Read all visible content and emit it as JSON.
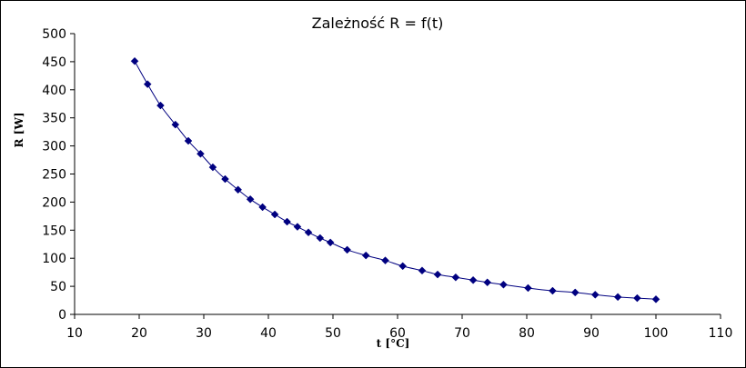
{
  "chart_data": {
    "type": "scatter",
    "title": "Zależność R = f(t)",
    "xlabel": "t [°C]",
    "ylabel": "R [W]",
    "xlim": [
      10,
      110
    ],
    "ylim": [
      0,
      500
    ],
    "x_ticks": [
      10,
      20,
      30,
      40,
      50,
      60,
      70,
      80,
      90,
      100,
      110
    ],
    "y_ticks": [
      0,
      50,
      100,
      150,
      200,
      250,
      300,
      350,
      400,
      450,
      500
    ],
    "grid": false,
    "legend": "none",
    "colors": {
      "series": "#000080",
      "axis": "#000000",
      "background": "#ffffff"
    },
    "series": [
      {
        "marker": "diamond",
        "line": "smooth",
        "x": [
          19.3,
          21.3,
          23.3,
          25.6,
          27.6,
          29.5,
          31.4,
          33.3,
          35.3,
          37.2,
          39.1,
          41.0,
          42.9,
          44.5,
          46.2,
          48.0,
          49.6,
          52.2,
          55.1,
          58.1,
          60.8,
          63.8,
          66.2,
          69.0,
          71.7,
          73.9,
          76.4,
          80.2,
          84.0,
          87.5,
          90.6,
          94.1,
          97.1,
          100.0
        ],
        "y": [
          451,
          410,
          372,
          338,
          309,
          286,
          262,
          241,
          222,
          205,
          191,
          178,
          165,
          156,
          146,
          136,
          128,
          115,
          105,
          96,
          86,
          78,
          71,
          66,
          61,
          57,
          53,
          47,
          42,
          39,
          35,
          31,
          29,
          27
        ]
      }
    ]
  }
}
